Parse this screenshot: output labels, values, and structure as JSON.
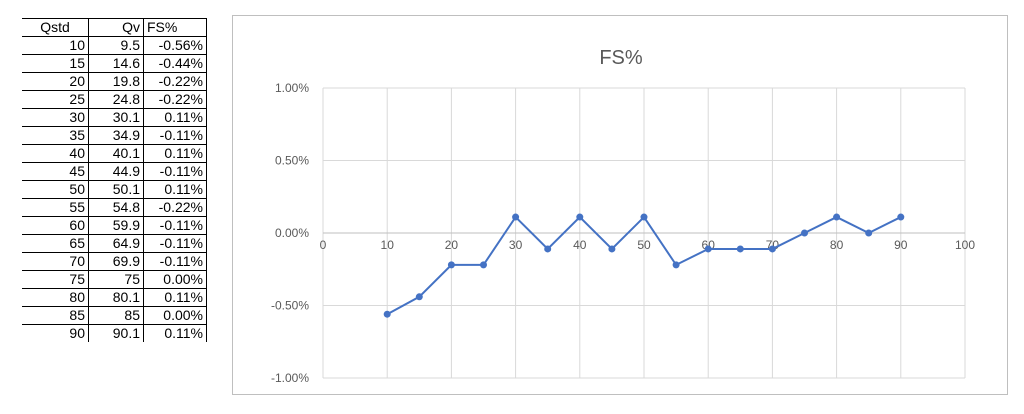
{
  "table": {
    "headers": [
      "Qstd",
      "Qv",
      "FS%"
    ],
    "rows": [
      [
        "10",
        "9.5",
        "-0.56%"
      ],
      [
        "15",
        "14.6",
        "-0.44%"
      ],
      [
        "20",
        "19.8",
        "-0.22%"
      ],
      [
        "25",
        "24.8",
        "-0.22%"
      ],
      [
        "30",
        "30.1",
        "0.11%"
      ],
      [
        "35",
        "34.9",
        "-0.11%"
      ],
      [
        "40",
        "40.1",
        "0.11%"
      ],
      [
        "45",
        "44.9",
        "-0.11%"
      ],
      [
        "50",
        "50.1",
        "0.11%"
      ],
      [
        "55",
        "54.8",
        "-0.22%"
      ],
      [
        "60",
        "59.9",
        "-0.11%"
      ],
      [
        "65",
        "64.9",
        "-0.11%"
      ],
      [
        "70",
        "69.9",
        "-0.11%"
      ],
      [
        "75",
        "75",
        "0.00%"
      ],
      [
        "80",
        "80.1",
        "0.11%"
      ],
      [
        "85",
        "85",
        "0.00%"
      ],
      [
        "90",
        "90.1",
        "0.11%"
      ]
    ]
  },
  "chart_data": {
    "type": "scatter",
    "title": "FS%",
    "xlabel": "",
    "ylabel": "",
    "xlim": [
      0,
      100
    ],
    "ylim": [
      -1.0,
      1.0
    ],
    "x_ticks": [
      "0",
      "10",
      "20",
      "30",
      "40",
      "50",
      "60",
      "70",
      "80",
      "90",
      "100"
    ],
    "y_ticks": [
      "1.00%",
      "0.50%",
      "0.00%",
      "-0.50%",
      "-1.00%"
    ],
    "y_tick_values": [
      1.0,
      0.5,
      0.0,
      -0.5,
      -1.0
    ],
    "x_tick_values": [
      0,
      10,
      20,
      30,
      40,
      50,
      60,
      70,
      80,
      90,
      100
    ],
    "grid": true,
    "legend": "none",
    "series_color": "#4472c4",
    "series": [
      {
        "x": [
          10,
          15,
          20,
          25,
          30,
          35,
          40,
          45,
          50,
          55,
          60,
          65,
          70,
          75,
          80,
          85,
          90
        ],
        "y": [
          -0.56,
          -0.44,
          -0.22,
          -0.22,
          0.11,
          -0.11,
          0.11,
          -0.11,
          0.11,
          -0.22,
          -0.11,
          -0.11,
          -0.11,
          0.0,
          0.11,
          0.0,
          0.11
        ]
      }
    ]
  }
}
